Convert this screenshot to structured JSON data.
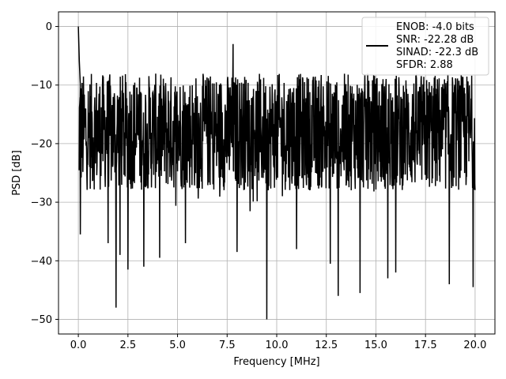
{
  "chart_data": {
    "type": "line",
    "title": "",
    "xlabel": "Frequency [MHz]",
    "ylabel": "PSD [dB]",
    "xlim": [
      -1.0,
      21.0
    ],
    "ylim": [
      -52.5,
      2.5
    ],
    "xticks": [
      0.0,
      2.5,
      5.0,
      7.5,
      10.0,
      12.5,
      15.0,
      17.5,
      20.0
    ],
    "xtick_labels": [
      "0.0",
      "2.5",
      "5.0",
      "7.5",
      "10.0",
      "12.5",
      "15.0",
      "17.5",
      "20.0"
    ],
    "yticks": [
      0,
      -10,
      -20,
      -30,
      -40,
      -50
    ],
    "ytick_labels": [
      "0",
      "−10",
      "−20",
      "−30",
      "−40",
      "−50"
    ],
    "grid": true,
    "legend_position": "top-right",
    "legend_lines": [
      "ENOB: -4.0 bits",
      "SNR: -22.28 dB",
      "SINAD: -22.3 dB",
      "SFDR: 2.88"
    ],
    "series": [
      {
        "color": "#000000",
        "x_start": 0.0,
        "x_end": 20.0,
        "noise_floor_center": -18,
        "noise_upper_envelope": -8,
        "noise_lower_envelope": -28,
        "peaks": [
          {
            "x": 0.0,
            "y": 0.0
          },
          {
            "x": 0.05,
            "y": -6.0
          },
          {
            "x": 0.1,
            "y": -10.0
          },
          {
            "x": 7.8,
            "y": -3.0
          }
        ],
        "dips": [
          {
            "x": 0.1,
            "y": -35.5
          },
          {
            "x": 1.9,
            "y": -48.0
          },
          {
            "x": 2.5,
            "y": -41.5
          },
          {
            "x": 2.1,
            "y": -39.0
          },
          {
            "x": 1.5,
            "y": -37.0
          },
          {
            "x": 3.3,
            "y": -41.0
          },
          {
            "x": 4.1,
            "y": -39.5
          },
          {
            "x": 5.4,
            "y": -37.0
          },
          {
            "x": 8.0,
            "y": -38.5
          },
          {
            "x": 9.5,
            "y": -50.0
          },
          {
            "x": 11.0,
            "y": -38.0
          },
          {
            "x": 12.7,
            "y": -40.5
          },
          {
            "x": 13.1,
            "y": -46.0
          },
          {
            "x": 14.2,
            "y": -45.5
          },
          {
            "x": 15.6,
            "y": -43.0
          },
          {
            "x": 16.0,
            "y": -42.0
          },
          {
            "x": 18.7,
            "y": -44.0
          },
          {
            "x": 19.9,
            "y": -44.5
          }
        ]
      }
    ]
  }
}
